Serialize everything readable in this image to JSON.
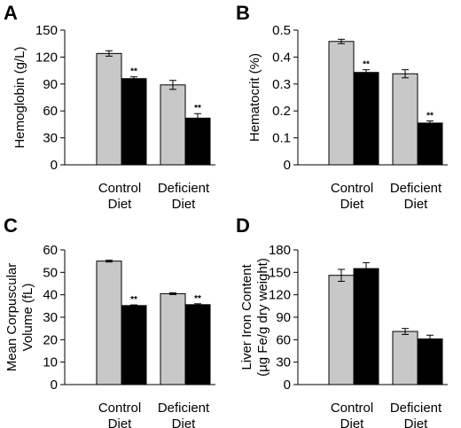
{
  "chart_data": [
    {
      "type": "bar",
      "panel": "A",
      "ylabel": [
        "Hemoglobin (g/L)"
      ],
      "ylim": [
        0,
        150
      ],
      "yticks": [
        "0",
        "30",
        "60",
        "90",
        "120",
        "150"
      ],
      "categories": [
        [
          "Control",
          "Diet"
        ],
        [
          "Deficient",
          "Diet"
        ]
      ],
      "series": [
        {
          "color": "#c8c8c8",
          "values": [
            124,
            89
          ],
          "errors": [
            3,
            5
          ],
          "sig": [
            "",
            ""
          ]
        },
        {
          "color": "#000000",
          "values": [
            96,
            52
          ],
          "errors": [
            2,
            5
          ],
          "sig": [
            "**",
            "**"
          ]
        }
      ]
    },
    {
      "type": "bar",
      "panel": "B",
      "ylabel": [
        "Hematocrit (%)"
      ],
      "ylim": [
        0,
        0.5
      ],
      "yticks": [
        "0",
        "0.1",
        "0.2",
        "0.3",
        "0.4",
        "0.5"
      ],
      "categories": [
        [
          "Control",
          "Diet"
        ],
        [
          "Deficient",
          "Diet"
        ]
      ],
      "series": [
        {
          "color": "#c8c8c8",
          "values": [
            0.458,
            0.338
          ],
          "errors": [
            0.008,
            0.015
          ],
          "sig": [
            "",
            ""
          ]
        },
        {
          "color": "#000000",
          "values": [
            0.343,
            0.155
          ],
          "errors": [
            0.01,
            0.008
          ],
          "sig": [
            "**",
            "**"
          ]
        }
      ]
    },
    {
      "type": "bar",
      "panel": "C",
      "ylabel": [
        "Mean Corpuscular",
        "Volume (fL)"
      ],
      "ylim": [
        0,
        60
      ],
      "yticks": [
        "0",
        "10",
        "20",
        "30",
        "40",
        "50",
        "60"
      ],
      "categories": [
        [
          "Control",
          "Diet"
        ],
        [
          "Deficient",
          "Diet"
        ]
      ],
      "series": [
        {
          "color": "#c8c8c8",
          "values": [
            55,
            40.5
          ],
          "errors": [
            0.4,
            0.4
          ],
          "sig": [
            "",
            ""
          ]
        },
        {
          "color": "#000000",
          "values": [
            35.2,
            35.6
          ],
          "errors": [
            0.3,
            0.4
          ],
          "sig": [
            "**",
            "**"
          ]
        }
      ]
    },
    {
      "type": "bar",
      "panel": "D",
      "ylabel": [
        "Liver Iron Content",
        "(µg Fe/g dry weight)"
      ],
      "ylim": [
        0,
        180
      ],
      "yticks": [
        "0",
        "30",
        "60",
        "90",
        "120",
        "150",
        "180"
      ],
      "categories": [
        [
          "Control",
          "Diet"
        ],
        [
          "Deficient",
          "Diet"
        ]
      ],
      "series": [
        {
          "color": "#c8c8c8",
          "values": [
            146,
            71
          ],
          "errors": [
            8,
            4
          ],
          "sig": [
            "",
            ""
          ]
        },
        {
          "color": "#000000",
          "values": [
            155,
            61
          ],
          "errors": [
            8,
            5
          ],
          "sig": [
            "",
            ""
          ]
        }
      ]
    }
  ]
}
